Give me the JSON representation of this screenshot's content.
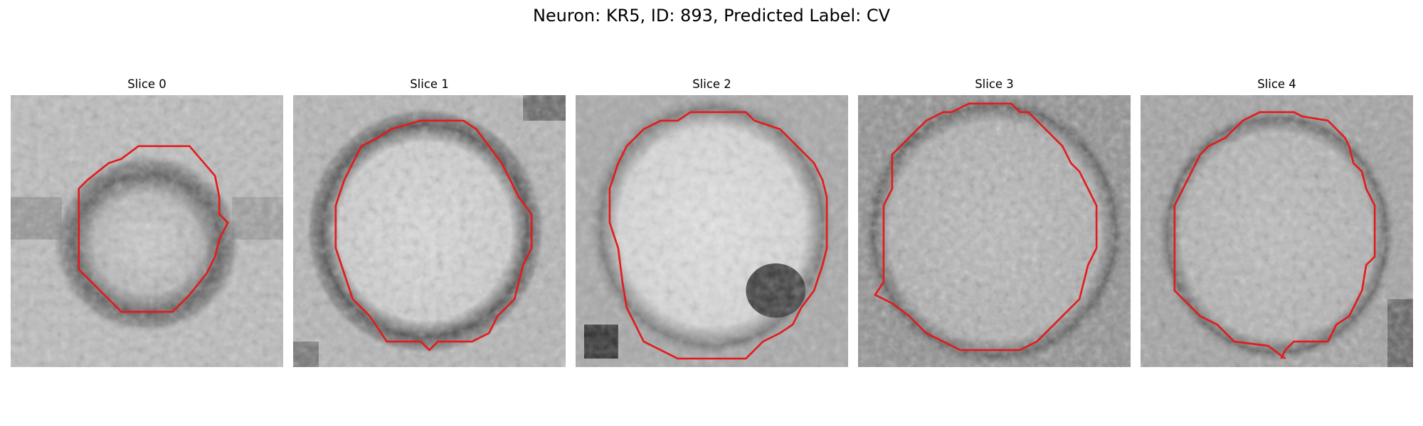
{
  "figure": {
    "title": "Neuron: KR5, ID: 893, Predicted Label: CV"
  },
  "colors": {
    "contour": "#e41a1c",
    "background": "#ffffff"
  },
  "slices": [
    {
      "label": "Slice 0"
    },
    {
      "label": "Slice 1"
    },
    {
      "label": "Slice 2"
    },
    {
      "label": "Slice 3"
    },
    {
      "label": "Slice 4"
    }
  ]
}
